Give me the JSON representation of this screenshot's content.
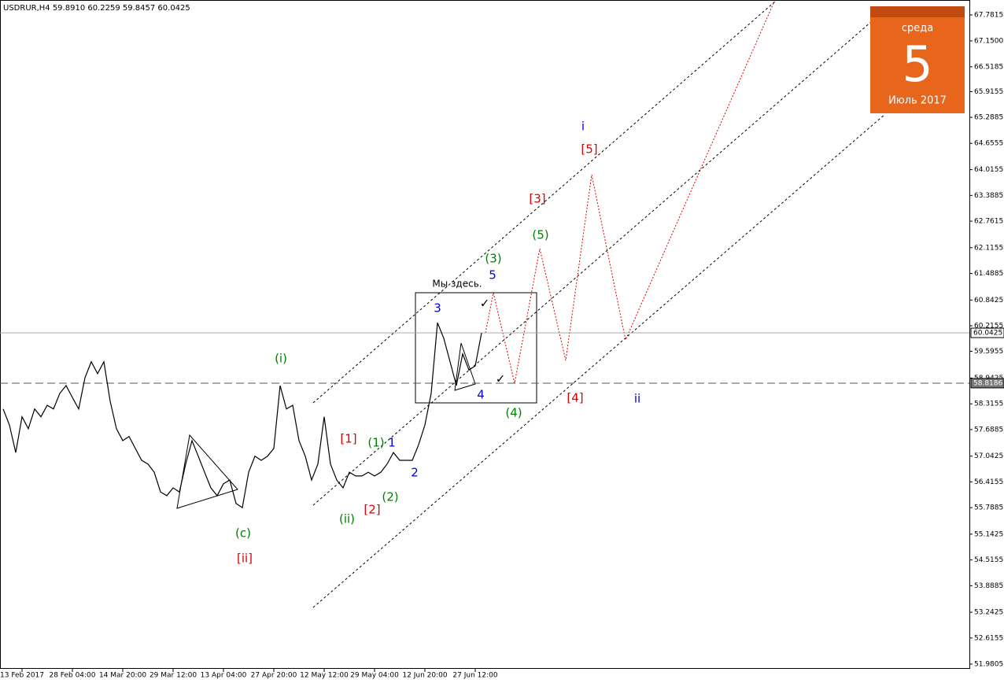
{
  "chart_data": {
    "type": "line",
    "title": "USDRUR,H4  59.8910 60.2259 59.8457 60.0425",
    "color": "#000000",
    "categories": [
      null,
      null,
      null,
      "13 Feb 2017",
      null,
      null,
      null,
      null,
      null,
      null,
      null,
      "28 Feb 04:00",
      null,
      null,
      null,
      null,
      null,
      null,
      null,
      "14 Mar 20:00",
      null,
      null,
      null,
      null,
      null,
      null,
      null,
      "29 Mar 12:00",
      null,
      null,
      null,
      null,
      null,
      null,
      null,
      "13 Apr 04:00",
      null,
      null,
      null,
      null,
      null,
      null,
      null,
      "27 Apr 20:00",
      null,
      null,
      null,
      null,
      null,
      null,
      null,
      "12 May 12:00",
      null,
      null,
      null,
      null,
      null,
      null,
      null,
      "29 May 04:00",
      null,
      null,
      null,
      null,
      null,
      null,
      null,
      "12 Jun 20:00",
      null,
      null,
      null,
      null,
      null,
      null,
      null,
      "27 Jun 12:00",
      null
    ],
    "values": [
      58.19,
      57.8,
      57.13,
      58.0,
      57.71,
      58.19,
      58.0,
      58.28,
      58.19,
      58.57,
      58.76,
      58.47,
      58.19,
      58.95,
      59.34,
      59.05,
      59.34,
      58.38,
      57.71,
      57.42,
      57.52,
      57.23,
      56.94,
      56.85,
      56.65,
      56.17,
      56.08,
      56.27,
      56.17,
      56.85,
      57.42,
      57.04,
      56.65,
      56.27,
      56.08,
      56.37,
      56.46,
      55.89,
      55.79,
      56.65,
      57.04,
      56.94,
      57.04,
      57.23,
      58.76,
      58.19,
      58.28,
      57.42,
      57.04,
      56.46,
      56.85,
      58.0,
      56.85,
      56.46,
      56.27,
      56.65,
      56.56,
      56.56,
      56.65,
      56.56,
      56.65,
      56.85,
      57.13,
      56.94,
      56.94,
      56.94,
      57.32,
      57.8,
      58.57,
      60.29,
      59.91,
      59.34,
      58.76,
      59.53,
      59.14,
      59.24,
      60.04
    ],
    "ylim": [
      51.865,
      68.145
    ],
    "yticks": [
      67.7815,
      {
        "value": 67.15,
        "label": "67.1500"
      },
      66.5185,
      65.9155,
      65.2885,
      64.6555,
      64.0155,
      63.3885,
      62.7615,
      62.1155,
      61.4885,
      60.8425,
      60.2155,
      59.5955,
      58.9425,
      58.3155,
      57.6885,
      57.0425,
      56.4155,
      55.7885,
      55.1425,
      54.5155,
      53.8885,
      53.2425,
      52.6155,
      51.9805
    ],
    "price_lines": [
      60.0425,
      58.8186
    ],
    "annotations": [
      {
        "text": "(i)",
        "color": "#008000"
      },
      {
        "text": "(c)",
        "color": "#008000"
      },
      {
        "text": "[ii]",
        "color": "#e00000"
      },
      {
        "text": "[1]",
        "color": "#e00000"
      },
      {
        "text": "(1)",
        "color": "#008000"
      },
      {
        "text": "1",
        "color": "#0000e0"
      },
      {
        "text": "2",
        "color": "#0000e0"
      },
      {
        "text": "(2)",
        "color": "#008000"
      },
      {
        "text": "[2]",
        "color": "#e00000"
      },
      {
        "text": "(ii)",
        "color": "#008000"
      },
      {
        "text": "3",
        "color": "#0000e0"
      },
      {
        "text": "Мы здесь.",
        "color": "#000000"
      },
      {
        "text": "(3)",
        "color": "#008000"
      },
      {
        "text": "5",
        "color": "#0000e0"
      },
      {
        "text": "4",
        "color": "#0000e0"
      },
      {
        "text": "(4)",
        "color": "#008000"
      },
      {
        "text": "[3]",
        "color": "#e00000"
      },
      {
        "text": "(5)",
        "color": "#008000"
      },
      {
        "text": "i",
        "color": "#0000e0"
      },
      {
        "text": "[5]",
        "color": "#e00000"
      },
      {
        "text": "[4]",
        "color": "#e00000"
      },
      {
        "text": "ii",
        "color": "#0000e0"
      },
      {
        "text": "✓",
        "color": "#000000"
      },
      {
        "text": "✓",
        "color": "#000000"
      }
    ]
  },
  "calendar": {
    "weekday": "среда",
    "day": "5",
    "month": "Июль 2017"
  }
}
